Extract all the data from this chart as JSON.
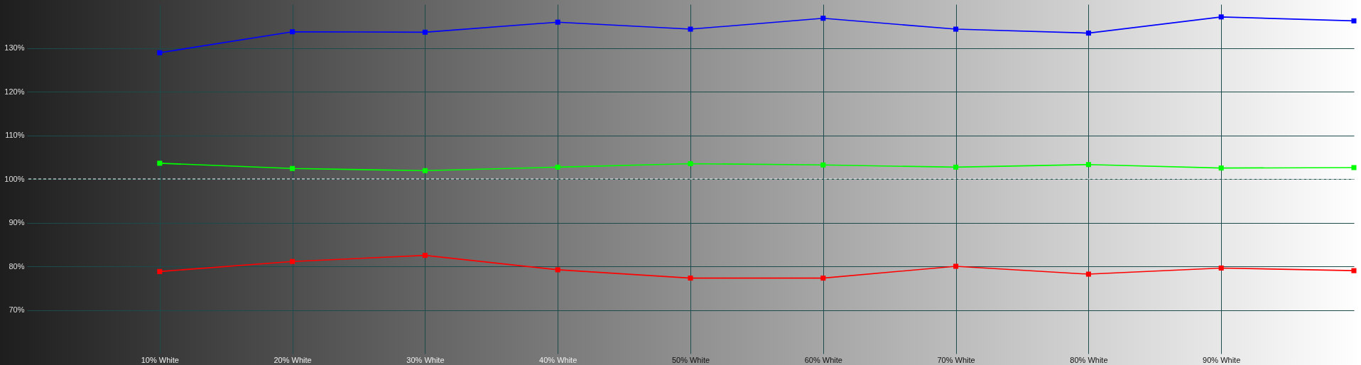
{
  "chart_data": {
    "type": "line",
    "x": [
      10,
      20,
      30,
      40,
      50,
      60,
      70,
      80,
      90,
      100
    ],
    "series": [
      {
        "color": "#0000ff",
        "values": [
          128.9,
          133.7,
          133.6,
          135.9,
          134.3,
          136.8,
          134.3,
          133.4,
          137.1,
          136.2
        ]
      },
      {
        "color": "#00ff00",
        "values": [
          103.6,
          102.4,
          101.9,
          102.7,
          103.5,
          103.2,
          102.7,
          103.3,
          102.5,
          102.6
        ]
      },
      {
        "color": "#ff0000",
        "values": [
          78.8,
          81.1,
          82.5,
          79.2,
          77.3,
          77.3,
          80.0,
          78.2,
          79.6,
          79.0
        ]
      }
    ],
    "xlim": [
      0,
      100
    ],
    "xticks": [
      {
        "value": 10,
        "label": "10% White"
      },
      {
        "value": 20,
        "label": "20% White"
      },
      {
        "value": 30,
        "label": "30% White"
      },
      {
        "value": 40,
        "label": "40% White"
      },
      {
        "value": 50,
        "label": "50% White"
      },
      {
        "value": 60,
        "label": "60% White"
      },
      {
        "value": 70,
        "label": "70% White"
      },
      {
        "value": 80,
        "label": "80% White"
      },
      {
        "value": 90,
        "label": "90% White"
      }
    ],
    "ylim": [
      60,
      140
    ],
    "yticks": [
      {
        "value": 70,
        "label": "70%"
      },
      {
        "value": 80,
        "label": "80%"
      },
      {
        "value": 90,
        "label": "90%"
      },
      {
        "value": 100,
        "label": "100%"
      },
      {
        "value": 110,
        "label": "110%"
      },
      {
        "value": 120,
        "label": "120%"
      },
      {
        "value": 130,
        "label": "130%"
      }
    ],
    "ref_lines": [
      {
        "axis": "y",
        "value": 100,
        "color": "#ffffff",
        "line_style": "dashed"
      }
    ],
    "grid": true,
    "marker": "square"
  }
}
